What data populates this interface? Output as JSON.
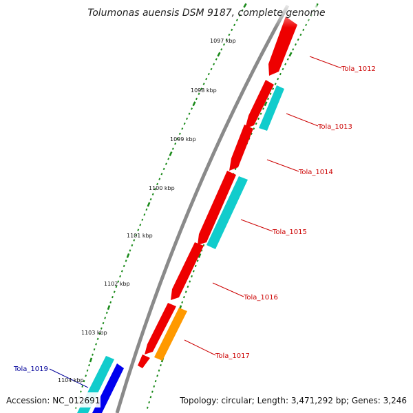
{
  "title": "Tolumonas auensis DSM 9187, complete genome",
  "footer": {
    "accession": "Accession: NC_012691",
    "summary": "Topology: circular; Length: 3,471,292 bp; Genes: 3,246"
  },
  "colors": {
    "backbone": "#8a8a8a",
    "tick": "#1a8a1a",
    "forward_gene": "#ee0000",
    "reverse_gene": "#11cccc",
    "orange_gene": "#ff9900",
    "blue_gene": "#0000ee",
    "label_red": "#cc0000",
    "label_blue": "#000099"
  },
  "kbp_labels": [
    "1097 kbp",
    "1098 kbp",
    "1099 kbp",
    "1100 kbp",
    "1101 kbp",
    "1102 kbp",
    "1103 kbp",
    "1104 kbp"
  ],
  "gene_labels": [
    "Tola_1012",
    "Tola_1013",
    "Tola_1014",
    "Tola_1015",
    "Tola_1016",
    "Tola_1017",
    "Tola_1019"
  ]
}
